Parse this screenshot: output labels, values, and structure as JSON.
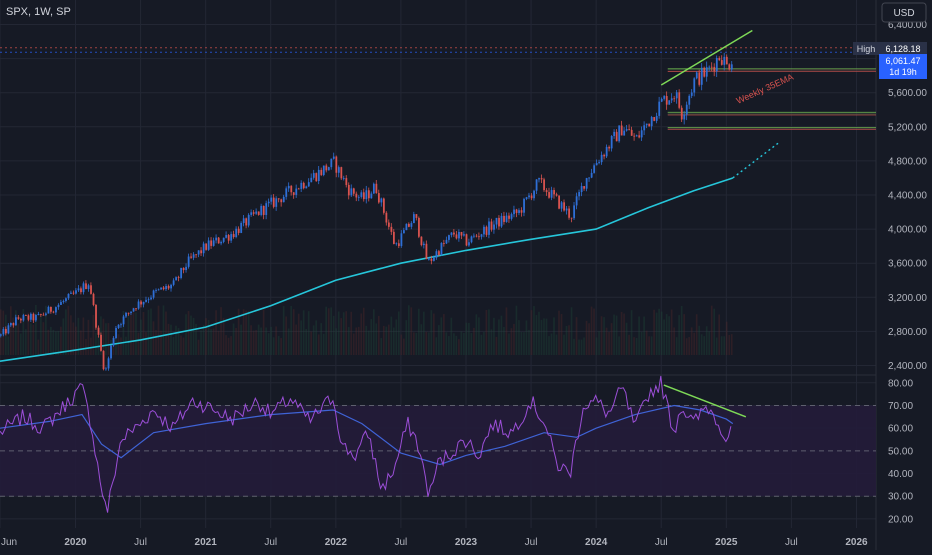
{
  "header": {
    "symbol_label": "SPX, 1W, SP",
    "currency": "USD"
  },
  "colors": {
    "background": "#161a25",
    "grid": "#232734",
    "up_candle": "#2f6fd6",
    "down_candle": "#d9534f",
    "ema_line": "#26c6da",
    "rsi_line": "#9c4fd8",
    "rsi_ma_line": "#3f63d6",
    "rsi_band": "#231c3a",
    "trendline": "#7ed957",
    "price_tag": "#2962ff",
    "high_tag": "#2a3147",
    "annotation_text": "#d9534f"
  },
  "badges": {
    "high_label": "High",
    "high_value": "6,128.18",
    "last_price": "6,061.47",
    "countdown": "1d 19h"
  },
  "annotations": {
    "ema_label": "Weekly 35EMA"
  },
  "chart_data": [
    {
      "type": "candlestick",
      "panel": "price",
      "title": "",
      "y_ticks": [
        "6,400.00",
        "6,000.00",
        "5,600.00",
        "5,200.00",
        "4,800.00",
        "4,400.00",
        "4,000.00",
        "3,600.00",
        "3,200.00",
        "2,800.00",
        "2,400.00"
      ],
      "ylim": [
        2300,
        6500
      ],
      "x_ticks": [
        "Jun",
        "2020",
        "Jul",
        "2021",
        "Jul",
        "2022",
        "Jul",
        "2023",
        "Jul",
        "2024",
        "Jul",
        "2025",
        "Jul",
        "2026"
      ],
      "x_tick_dates": [
        2019.42,
        2020.0,
        2020.5,
        2021.0,
        2021.5,
        2022.0,
        2022.5,
        2023.0,
        2023.5,
        2024.0,
        2024.5,
        2025.0,
        2025.5,
        2026.0
      ],
      "xlim": [
        2019.42,
        2026.15
      ],
      "close_series": {
        "t": [
          2019.42,
          2019.55,
          2019.7,
          2019.85,
          2020.0,
          2020.1,
          2020.15,
          2020.22,
          2020.3,
          2020.45,
          2020.6,
          2020.75,
          2020.85,
          2021.0,
          2021.2,
          2021.4,
          2021.6,
          2021.8,
          2021.98,
          2022.1,
          2022.2,
          2022.3,
          2022.45,
          2022.6,
          2022.7,
          2022.78,
          2022.9,
          2023.0,
          2023.2,
          2023.4,
          2023.55,
          2023.65,
          2023.8,
          2023.9,
          2024.0,
          2024.2,
          2024.3,
          2024.5,
          2024.6,
          2024.65,
          2024.75,
          2024.85,
          2024.95,
          2025.0,
          2025.05
        ],
        "close": [
          2750,
          2950,
          2960,
          3100,
          3250,
          3380,
          2900,
          2300,
          2850,
          3100,
          3250,
          3350,
          3600,
          3800,
          3950,
          4200,
          4400,
          4600,
          4780,
          4450,
          4350,
          4500,
          3800,
          4150,
          3600,
          3750,
          3950,
          3850,
          4050,
          4200,
          4550,
          4400,
          4150,
          4550,
          4800,
          5200,
          5050,
          5500,
          5600,
          5350,
          5750,
          5850,
          6050,
          5900,
          6061
        ]
      },
      "weekly_35ema": {
        "t": [
          2019.42,
          2020.0,
          2020.5,
          2021.0,
          2021.5,
          2022.0,
          2022.5,
          2023.0,
          2023.5,
          2024.0,
          2024.4,
          2024.75,
          2025.05
        ],
        "value": [
          2450,
          2580,
          2700,
          2850,
          3100,
          3400,
          3600,
          3750,
          3880,
          4000,
          4250,
          4450,
          4600
        ],
        "projection": {
          "t": [
            2025.05,
            2025.4
          ],
          "value": [
            4600,
            5010
          ]
        }
      },
      "horizontal_levels": [
        6128.18,
        6075,
        5880,
        5850,
        5370,
        5340,
        5190,
        5170
      ],
      "trendlines": [
        {
          "t": [
            2024.5,
            2025.2
          ],
          "value": [
            5690,
            6330
          ]
        }
      ],
      "high": 6128.18,
      "last": 6061.47
    },
    {
      "type": "line",
      "panel": "rsi",
      "title": "",
      "y_ticks": [
        "80.00",
        "70.00",
        "60.00",
        "50.00",
        "40.00",
        "30.00",
        "20.00"
      ],
      "ylim": [
        16,
        83
      ],
      "band": [
        30,
        70
      ],
      "series": [
        {
          "t": [
            2019.42,
            2019.6,
            2019.75,
            2019.95,
            2020.05,
            2020.12,
            2020.18,
            2020.24,
            2020.35,
            2020.5,
            2020.6,
            2020.75,
            2020.9,
            2021.0,
            2021.2,
            2021.4,
            2021.5,
            2021.65,
            2021.8,
            2021.98,
            2022.05,
            2022.15,
            2022.25,
            2022.35,
            2022.45,
            2022.55,
            2022.62,
            2022.72,
            2022.78,
            2022.9,
            2023.0,
            2023.1,
            2023.2,
            2023.35,
            2023.5,
            2023.6,
            2023.7,
            2023.8,
            2023.9,
            2024.0,
            2024.1,
            2024.2,
            2024.3,
            2024.4,
            2024.5,
            2024.6,
            2024.65,
            2024.75,
            2024.85,
            2024.95,
            2025.0,
            2025.05
          ],
          "value": [
            58,
            65,
            60,
            72,
            78,
            62,
            40,
            22,
            55,
            62,
            68,
            60,
            72,
            70,
            64,
            72,
            66,
            73,
            63,
            74,
            52,
            48,
            58,
            33,
            42,
            62,
            55,
            30,
            44,
            50,
            55,
            48,
            62,
            58,
            72,
            63,
            44,
            40,
            70,
            72,
            66,
            78,
            60,
            75,
            80,
            58,
            70,
            62,
            70,
            62,
            55,
            63
          ]
        },
        {
          "t": [
            2019.42,
            2019.8,
            2020.05,
            2020.2,
            2020.35,
            2020.6,
            2021.0,
            2021.5,
            2021.98,
            2022.2,
            2022.5,
            2022.8,
            2023.0,
            2023.3,
            2023.6,
            2023.85,
            2024.0,
            2024.3,
            2024.6,
            2024.8,
            2025.0,
            2025.05
          ],
          "value": [
            60,
            63,
            66,
            53,
            47,
            58,
            62,
            66,
            68,
            62,
            49,
            44,
            48,
            52,
            58,
            56,
            60,
            66,
            70,
            68,
            64,
            62
          ]
        }
      ],
      "trendlines": [
        {
          "t": [
            2024.52,
            2025.15
          ],
          "value": [
            79,
            65
          ]
        }
      ]
    }
  ]
}
